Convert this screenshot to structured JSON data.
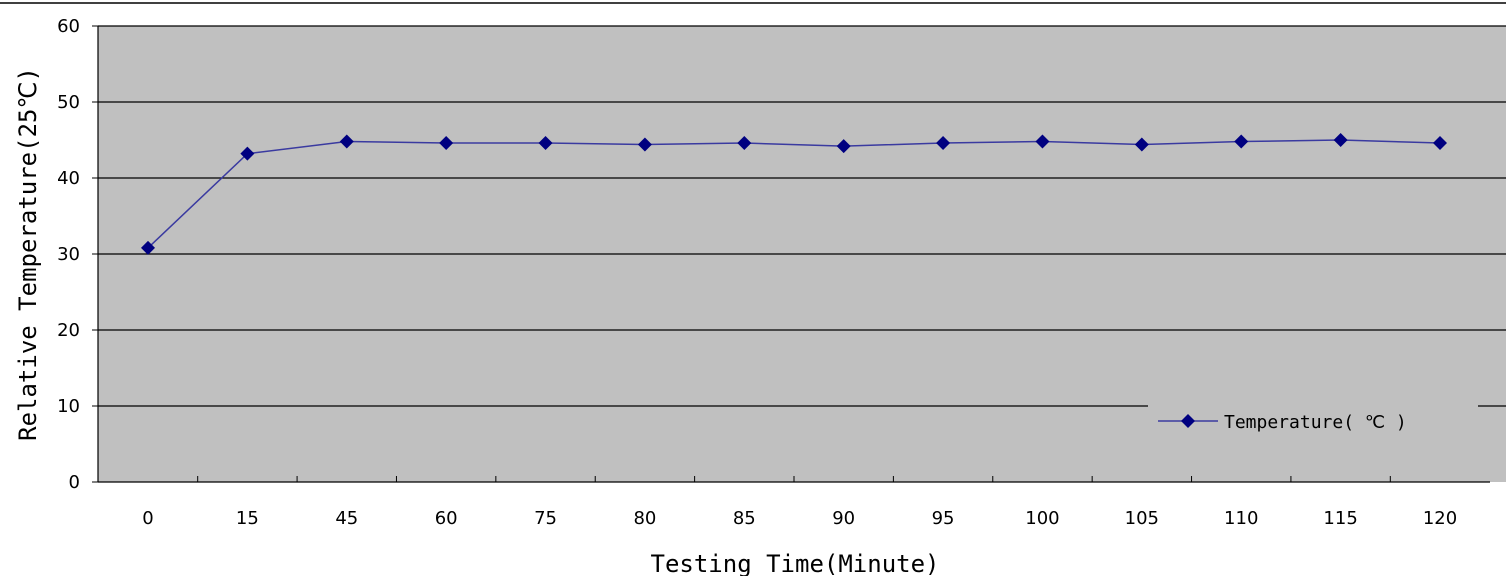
{
  "chart_data": {
    "type": "line",
    "categories": [
      "0",
      "15",
      "45",
      "60",
      "75",
      "80",
      "85",
      "90",
      "95",
      "100",
      "105",
      "110",
      "115",
      "120"
    ],
    "series": [
      {
        "name": "Temperature( ℃ )",
        "values": [
          30.8,
          43.2,
          44.8,
          44.6,
          44.6,
          44.4,
          44.6,
          44.2,
          44.6,
          44.8,
          44.4,
          44.8,
          45.0,
          44.6
        ]
      }
    ],
    "xlabel": "Testing Time(Minute)",
    "ylabel": "Relative Temperature(25℃)",
    "ylim": [
      0,
      60
    ],
    "yticks": [
      "0",
      "10",
      "20",
      "30",
      "40",
      "50",
      "60"
    ],
    "grid": "horizontal",
    "legend_position": "bottom-right",
    "colors": {
      "plot_background": "#c0c0c0",
      "series_line": "#3a3aa0",
      "marker": "#000080",
      "gridline": "#000000"
    }
  }
}
